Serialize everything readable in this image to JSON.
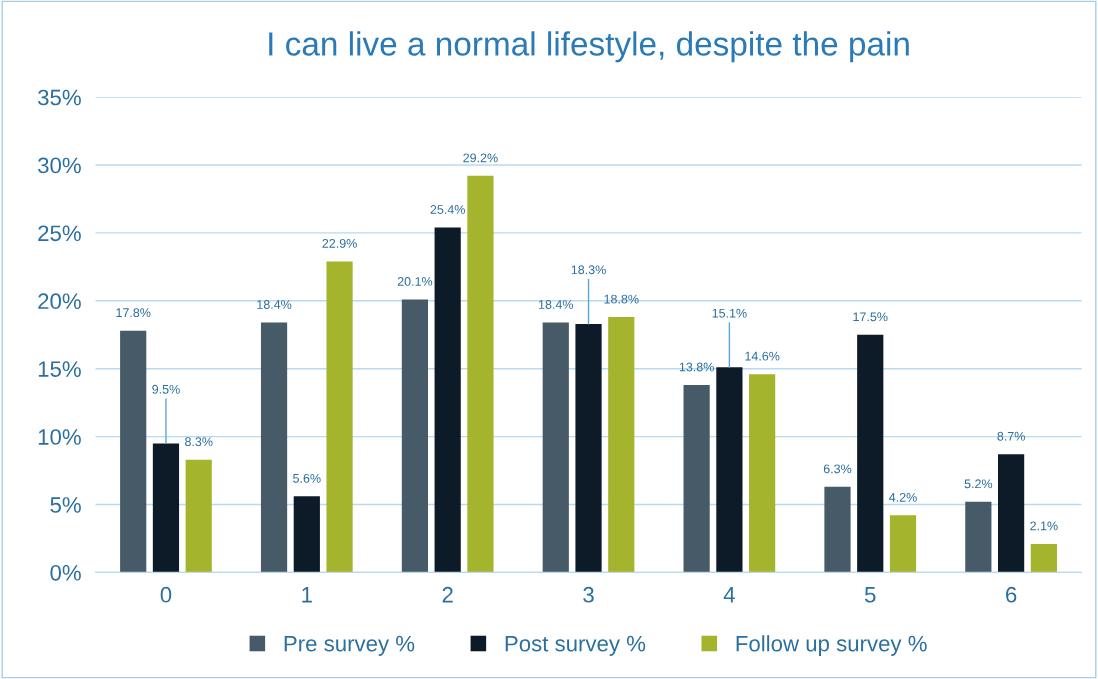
{
  "chart_data": {
    "type": "bar",
    "title": "I can live a normal lifestyle, despite the pain",
    "categories": [
      "0",
      "1",
      "2",
      "3",
      "4",
      "5",
      "6"
    ],
    "series": [
      {
        "name": "Pre survey %",
        "color": "#475a68",
        "values": [
          17.8,
          18.4,
          20.1,
          18.4,
          13.8,
          6.3,
          5.2
        ],
        "value_labels": [
          "17.8%",
          "18.4%",
          "20.1%",
          "18.4%",
          "13.8%",
          "6.3%",
          "5.2%"
        ]
      },
      {
        "name": "Post survey %",
        "color": "#0c1b27",
        "values": [
          9.5,
          5.6,
          25.4,
          18.3,
          15.1,
          17.5,
          8.7
        ],
        "value_labels": [
          "9.5%",
          "5.6%",
          "25.4%",
          "18.3%",
          "15.1%",
          "17.5%",
          "8.7%"
        ]
      },
      {
        "name": "Follow up survey %",
        "color": "#a5b42d",
        "values": [
          8.3,
          22.9,
          29.2,
          18.8,
          14.6,
          4.2,
          2.1
        ],
        "value_labels": [
          "8.3%",
          "22.9%",
          "29.2%",
          "18.8%",
          "14.6%",
          "4.2%",
          "2.1%"
        ]
      }
    ],
    "ylim": [
      0,
      35
    ],
    "yticks": [
      {
        "value": 0,
        "label": "0%"
      },
      {
        "value": 5,
        "label": "5%"
      },
      {
        "value": 10,
        "label": "10%"
      },
      {
        "value": 15,
        "label": "15%"
      },
      {
        "value": 20,
        "label": "20%"
      },
      {
        "value": 25,
        "label": "25%"
      },
      {
        "value": 30,
        "label": "30%"
      },
      {
        "value": 35,
        "label": "35%"
      }
    ],
    "grid": "y",
    "legend": "bottom"
  }
}
